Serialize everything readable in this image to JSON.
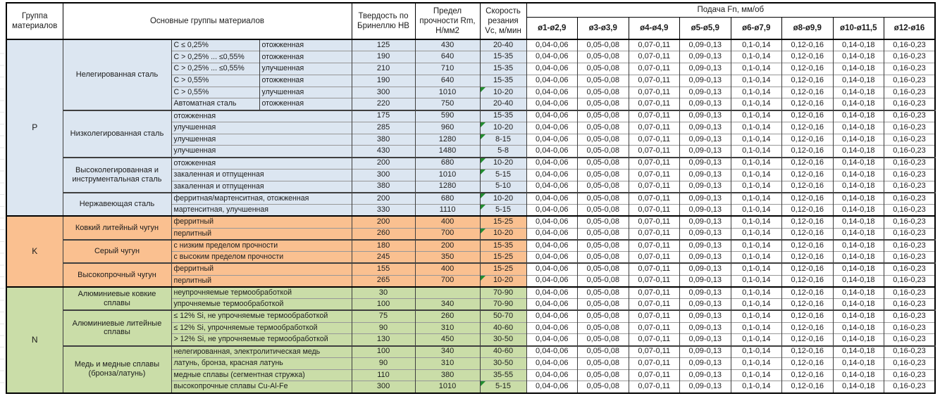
{
  "meta": {
    "marker_color": "#218c2f",
    "marker_meaning": "green-corner-flag",
    "group_colors": {
      "P": "#dce6f1",
      "K": "#fac090",
      "N": "#cadda8"
    }
  },
  "header": {
    "col_group": "Группа материалов",
    "col_materials": "Основные группы материалов",
    "col_hb": "Твердость по Бринеллю HB",
    "col_rm": "Предел прочности Rm, Н/мм2",
    "col_vc": "Скорость резания Vc, м/мин",
    "col_feed": "Подача Fn, мм/об",
    "diameters": [
      "ø1-ø2,9",
      "ø3-ø3,9",
      "ø4-ø4,9",
      "ø5-ø5,9",
      "ø6-ø7,9",
      "ø8-ø9,9",
      "ø10-ø11,5",
      "ø12-ø16"
    ]
  },
  "table": {
    "feed_values": [
      "0,04-0,06",
      "0,05-0,08",
      "0,07-0,11",
      "0,09-0,13",
      "0,1-0,14",
      "0,12-0,16",
      "0,14-0,18",
      "0,16-0,23"
    ],
    "groups": [
      {
        "letter": "P",
        "color": "#dce6f1",
        "subgroups": [
          {
            "name": "Нелегированная сталь",
            "rows": [
              {
                "cond": [
                  "C ≤ 0,25%",
                  "отожженная"
                ],
                "hb": "125",
                "rm": "430",
                "vc": "20-40",
                "marker": false
              },
              {
                "cond": [
                  "C > 0,25% ... ≤0,55%",
                  "отожженная"
                ],
                "hb": "190",
                "rm": "640",
                "vc": "15-35",
                "marker": false
              },
              {
                "cond": [
                  "C > 0,25% ... ≤0,55%",
                  "улучшенная"
                ],
                "hb": "210",
                "rm": "710",
                "vc": "15-35",
                "marker": false
              },
              {
                "cond": [
                  "C > 0,55%",
                  "отожженная"
                ],
                "hb": "190",
                "rm": "640",
                "vc": "15-35",
                "marker": false
              },
              {
                "cond": [
                  "C > 0,55%",
                  "улучшенная"
                ],
                "hb": "300",
                "rm": "1010",
                "vc": "10-20",
                "marker": true
              },
              {
                "cond": [
                  "Автоматная сталь",
                  "отожженная"
                ],
                "hb": "220",
                "rm": "750",
                "vc": "20-40",
                "marker": false
              }
            ]
          },
          {
            "name": "Низколегированная сталь",
            "rows": [
              {
                "cond": [
                  "отожженная"
                ],
                "hb": "175",
                "rm": "590",
                "vc": "15-35",
                "marker": false
              },
              {
                "cond": [
                  "улучшенная"
                ],
                "hb": "285",
                "rm": "960",
                "vc": "10-20",
                "marker": true
              },
              {
                "cond": [
                  "улучшенная"
                ],
                "hb": "380",
                "rm": "1280",
                "vc": "8-15",
                "marker": true
              },
              {
                "cond": [
                  "улучшенная"
                ],
                "hb": "430",
                "rm": "1480",
                "vc": "5-8",
                "marker": false
              }
            ]
          },
          {
            "name": "Высоколегированная и инструментальная сталь",
            "rows": [
              {
                "cond": [
                  "отожженная"
                ],
                "hb": "200",
                "rm": "680",
                "vc": "10-20",
                "marker": true
              },
              {
                "cond": [
                  "закаленная и отпущенная"
                ],
                "hb": "300",
                "rm": "1010",
                "vc": "5-15",
                "marker": true
              },
              {
                "cond": [
                  "закаленная и отпущенная"
                ],
                "hb": "380",
                "rm": "1280",
                "vc": "5-10",
                "marker": false
              }
            ]
          },
          {
            "name": "Нержавеющая сталь",
            "rows": [
              {
                "cond": [
                  "ферритная/мартенситная, отожженная"
                ],
                "hb": "200",
                "rm": "680",
                "vc": "10-20",
                "marker": true
              },
              {
                "cond": [
                  "мартенситная, улучшенная"
                ],
                "hb": "330",
                "rm": "1110",
                "vc": "5-15",
                "marker": true
              }
            ]
          }
        ]
      },
      {
        "letter": "K",
        "color": "#fac090",
        "subgroups": [
          {
            "name": "Ковкий литейный чугун",
            "rows": [
              {
                "cond": [
                  "ферритный"
                ],
                "hb": "200",
                "rm": "400",
                "vc": "15-25",
                "marker": false
              },
              {
                "cond": [
                  "перлитный"
                ],
                "hb": "260",
                "rm": "700",
                "vc": "10-20",
                "marker": true
              }
            ]
          },
          {
            "name": "Серый чугун",
            "rows": [
              {
                "cond": [
                  "с низким пределом прочности"
                ],
                "hb": "180",
                "rm": "200",
                "vc": "15-35",
                "marker": false
              },
              {
                "cond": [
                  "с высоким пределом прочности"
                ],
                "hb": "245",
                "rm": "350",
                "vc": "15-25",
                "marker": false
              }
            ]
          },
          {
            "name": "Высокопрочный чугун",
            "rows": [
              {
                "cond": [
                  "ферритный"
                ],
                "hb": "155",
                "rm": "400",
                "vc": "15-25",
                "marker": false
              },
              {
                "cond": [
                  "перлитный"
                ],
                "hb": "265",
                "rm": "700",
                "vc": "10-20",
                "marker": true
              }
            ]
          }
        ]
      },
      {
        "letter": "N",
        "color": "#cadda8",
        "subgroups": [
          {
            "name": "Алюминиевые ковкие сплавы",
            "rows": [
              {
                "cond": [
                  "неупрочняемые термообработкой"
                ],
                "hb": "30",
                "rm": "",
                "vc": "70-90",
                "marker": false
              },
              {
                "cond": [
                  "упрочняемые термообработкой"
                ],
                "hb": "100",
                "rm": "340",
                "vc": "70-90",
                "marker": false
              }
            ]
          },
          {
            "name": "Алюминиевые литейные сплавы",
            "rows": [
              {
                "cond": [
                  "≤ 12% Si, не упрочняемые термообработкой"
                ],
                "hb": "75",
                "rm": "260",
                "vc": "50-70",
                "marker": false
              },
              {
                "cond": [
                  "≤ 12% Si, упрочняемые термообработкой"
                ],
                "hb": "90",
                "rm": "310",
                "vc": "40-60",
                "marker": false
              },
              {
                "cond": [
                  "> 12% Si, не упрочняемые термообработкой"
                ],
                "hb": "130",
                "rm": "450",
                "vc": "30-50",
                "marker": false
              }
            ]
          },
          {
            "name": "Медь и медные сплавы (бронза/латунь)",
            "rows": [
              {
                "cond": [
                  "нелегированная, электролитическая медь"
                ],
                "hb": "100",
                "rm": "340",
                "vc": "40-60",
                "marker": false
              },
              {
                "cond": [
                  "латунь, бронза, красная латунь"
                ],
                "hb": "90",
                "rm": "310",
                "vc": "30-50",
                "marker": false
              },
              {
                "cond": [
                  "медные сплавы (сегментная стружка)"
                ],
                "hb": "110",
                "rm": "380",
                "vc": "35-55",
                "marker": false
              },
              {
                "cond": [
                  "высокопрочные сплавы Cu-Al-Fe"
                ],
                "hb": "300",
                "rm": "1010",
                "vc": "5-15",
                "marker": true
              }
            ]
          }
        ]
      }
    ]
  }
}
